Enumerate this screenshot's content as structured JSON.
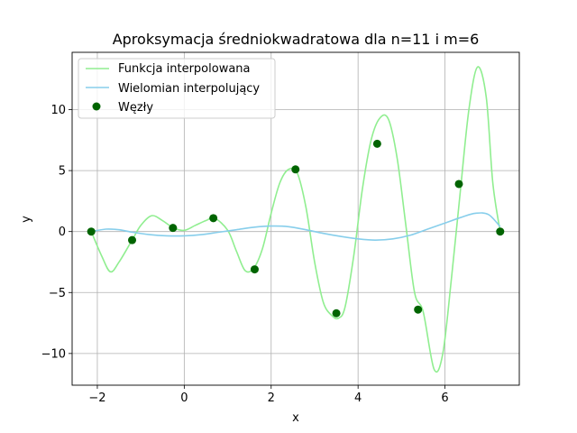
{
  "chart_data": {
    "type": "line",
    "title": "Aproksymacja średniokwadratowa dla n=11 i m=6",
    "xlabel": "x",
    "ylabel": "y",
    "xlim": [
      -2.58,
      7.71
    ],
    "ylim": [
      -12.6,
      14.7
    ],
    "xticks": [
      -2,
      0,
      2,
      4,
      6
    ],
    "yticks": [
      -10,
      -5,
      0,
      5,
      10
    ],
    "xtick_labels": [
      "−2",
      "0",
      "2",
      "4",
      "6"
    ],
    "ytick_labels": [
      "−10",
      "−5",
      "0",
      "5",
      "10"
    ],
    "grid": true,
    "legend_position": "upper-left",
    "series": [
      {
        "name": "Funkcja interpolowana",
        "kind": "line",
        "color": "#90ee90",
        "x": [
          -2.14,
          -1.9,
          -1.7,
          -1.5,
          -1.2,
          -1.0,
          -0.75,
          -0.5,
          -0.25,
          0.0,
          0.25,
          0.5,
          0.7,
          1.0,
          1.2,
          1.4,
          1.6,
          1.8,
          2.0,
          2.2,
          2.4,
          2.6,
          2.8,
          3.0,
          3.2,
          3.4,
          3.55,
          3.7,
          3.9,
          4.1,
          4.3,
          4.5,
          4.7,
          4.9,
          5.1,
          5.3,
          5.5,
          5.75,
          5.95,
          6.15,
          6.35,
          6.55,
          6.75,
          6.95,
          7.1,
          7.27
        ],
        "y": [
          0.0,
          -2.0,
          -3.3,
          -2.5,
          -0.7,
          0.5,
          1.3,
          0.9,
          0.3,
          0.1,
          0.5,
          0.9,
          1.1,
          0.1,
          -1.6,
          -3.2,
          -3.0,
          -1.4,
          1.5,
          4.0,
          5.1,
          4.8,
          2.0,
          -2.5,
          -5.8,
          -6.9,
          -7.1,
          -6.2,
          -2.0,
          3.5,
          7.5,
          9.3,
          9.2,
          6.0,
          0.5,
          -5.0,
          -6.6,
          -11.3,
          -10.0,
          -3.8,
          3.2,
          10.0,
          13.5,
          11.0,
          4.0,
          0.0
        ]
      },
      {
        "name": "Wielomian interpolujący",
        "kind": "line",
        "color": "#87ceeb",
        "x": [
          -2.14,
          -1.8,
          -1.5,
          -1.2,
          -0.8,
          -0.4,
          0.0,
          0.4,
          0.8,
          1.2,
          1.6,
          2.0,
          2.4,
          2.8,
          3.2,
          3.6,
          4.0,
          4.4,
          4.8,
          5.2,
          5.6,
          6.0,
          6.4,
          6.7,
          7.0,
          7.27
        ],
        "y": [
          0.0,
          0.2,
          0.15,
          -0.05,
          -0.25,
          -0.35,
          -0.35,
          -0.25,
          -0.05,
          0.15,
          0.35,
          0.45,
          0.4,
          0.15,
          -0.15,
          -0.4,
          -0.6,
          -0.7,
          -0.6,
          -0.3,
          0.2,
          0.7,
          1.2,
          1.5,
          1.4,
          0.4
        ]
      },
      {
        "name": "Węzły",
        "kind": "scatter",
        "color": "#006400",
        "x": [
          -2.14,
          -1.2,
          -0.26,
          0.67,
          1.62,
          2.56,
          3.5,
          4.44,
          5.38,
          6.32,
          7.27
        ],
        "y": [
          0.0,
          -0.7,
          0.3,
          1.1,
          -3.1,
          5.1,
          -6.7,
          7.2,
          -6.4,
          3.9,
          0.0
        ]
      }
    ]
  }
}
